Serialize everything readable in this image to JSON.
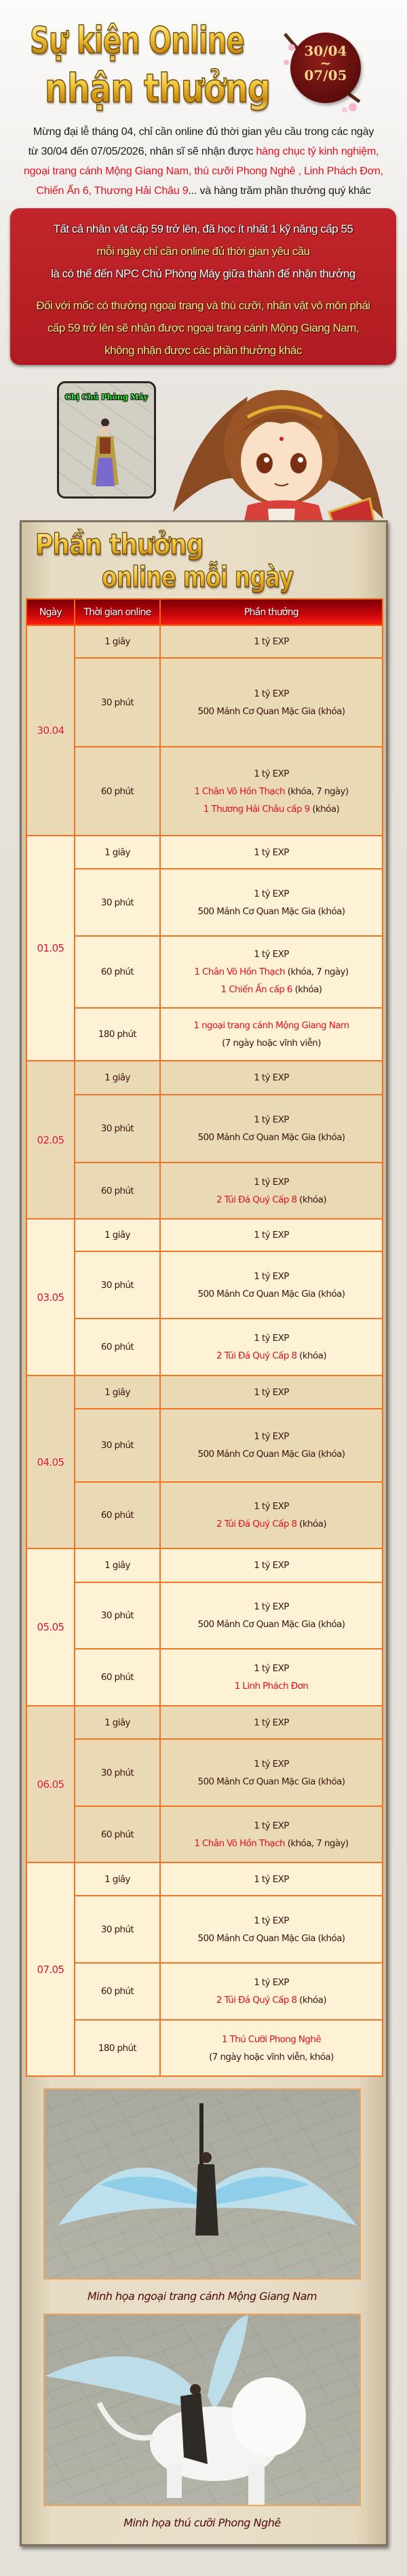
{
  "header": {
    "title_line1": "Sự kiện Online",
    "title_line2": "nhận thưởng",
    "seal_start": "30/04",
    "seal_sep": "~",
    "seal_end": "07/05"
  },
  "intro": {
    "lines": [
      [
        {
          "t": "Mừng đại lễ tháng 04, chỉ cần online đủ thời gian yêu cầu trong các ngày",
          "hl": false
        }
      ],
      [
        {
          "t": "từ 30/04 đến 07/05/2026, nhân sĩ sẽ nhận được ",
          "hl": false
        },
        {
          "t": "hàng chục tỷ kinh nghiệm,",
          "hl": true
        }
      ],
      [
        {
          "t": "ngoại trang cánh Mộng Giang Nam, thú cưỡi  Phong Nghê ,  Linh Phách Đơn,",
          "hl": true
        }
      ],
      [
        {
          "t": "Chiến Ấn 6, Thương Hải Châu 9",
          "hl": true
        },
        {
          "t": "... và hàng trăm phần thưởng quý khác",
          "hl": false
        }
      ]
    ]
  },
  "notice": {
    "lines": [
      {
        "t": "Tất cả nhân vật cấp 59 trở lên, đã học ít nhất 1 kỹ năng cấp 55",
        "color": "white"
      },
      {
        "t": "mỗi ngày chỉ cần online đủ thời gian yêu cầu",
        "color": "yellow"
      },
      {
        "t": "là có thể đến NPC Chủ Phòng Máy giữa thành để nhận thưởng",
        "color": "white"
      },
      {
        "t": "Đối với mốc có thưởng ngoại trang và thú cưỡi, nhân vật vô môn phái",
        "color": "yellow"
      },
      {
        "t": "cấp 59 trở lên sẽ nhận được ngoại trang cánh Mộng Giang Nam,",
        "color": "yellow"
      },
      {
        "t": "không nhận được các phần thưởng khác",
        "color": "yellow"
      }
    ]
  },
  "npc": {
    "name": "Chị Chủ Phòng Máy"
  },
  "rewards": {
    "title_line1": "Phần thưởng",
    "title_line2": "online mỗi ngày",
    "columns": [
      "Ngày",
      "Thời gian online",
      "Phần thưởng"
    ],
    "days": [
      {
        "date": "30.04",
        "rows": [
          {
            "time": "1 giây",
            "reward": [
              [
                {
                  "t": "1 tỷ EXP"
                }
              ]
            ]
          },
          {
            "time": "30 phút",
            "reward": [
              [
                {
                  "t": "1 tỷ EXP"
                }
              ],
              [
                {
                  "t": "500 Mảnh Cơ Quan Mặc Gia (khóa)"
                }
              ]
            ]
          },
          {
            "time": "60 phút",
            "reward": [
              [
                {
                  "t": "1 tỷ EXP"
                }
              ],
              [
                {
                  "t": "1 Chân Võ Hồn Thạch",
                  "hl": true
                },
                {
                  "t": " (khóa, 7 ngày)"
                }
              ],
              [
                {
                  "t": "1 Thương Hải Châu cấp 9",
                  "hl": true
                },
                {
                  "t": " (khóa)"
                }
              ]
            ]
          }
        ]
      },
      {
        "date": "01.05",
        "rows": [
          {
            "time": "1 giây",
            "reward": [
              [
                {
                  "t": "1 tỷ EXP"
                }
              ]
            ]
          },
          {
            "time": "30 phút",
            "reward": [
              [
                {
                  "t": "1 tỷ EXP"
                }
              ],
              [
                {
                  "t": "500 Mảnh Cơ Quan Mặc Gia (khóa)"
                }
              ]
            ]
          },
          {
            "time": "60 phút",
            "reward": [
              [
                {
                  "t": "1 tỷ EXP"
                }
              ],
              [
                {
                  "t": "1 Chân Võ Hồn Thạch",
                  "hl": true
                },
                {
                  "t": " (khóa, 7 ngày)"
                }
              ],
              [
                {
                  "t": "1 Chiến Ấn cấp 6",
                  "hl": true
                },
                {
                  "t": " (khóa)"
                }
              ]
            ]
          },
          {
            "time": "180 phút",
            "reward": [
              [
                {
                  "t": "1 ngoại trang cánh Mộng Giang Nam",
                  "hl": true
                }
              ],
              [
                {
                  "t": "(7 ngày hoặc vĩnh viễn)"
                }
              ]
            ]
          }
        ]
      },
      {
        "date": "02.05",
        "rows": [
          {
            "time": "1 giây",
            "reward": [
              [
                {
                  "t": "1 tỷ EXP"
                }
              ]
            ]
          },
          {
            "time": "30 phút",
            "reward": [
              [
                {
                  "t": "1 tỷ EXP"
                }
              ],
              [
                {
                  "t": "500 Mảnh Cơ Quan Mặc Gia (khóa)"
                }
              ]
            ]
          },
          {
            "time": "60 phút",
            "reward": [
              [
                {
                  "t": "1 tỷ EXP"
                }
              ],
              [
                {
                  "t": "2 Túi Đá Quý Cấp 8",
                  "hl": true
                },
                {
                  "t": " (khóa)"
                }
              ]
            ]
          }
        ]
      },
      {
        "date": "03.05",
        "rows": [
          {
            "time": "1 giây",
            "reward": [
              [
                {
                  "t": "1 tỷ EXP"
                }
              ]
            ]
          },
          {
            "time": "30 phút",
            "reward": [
              [
                {
                  "t": "1 tỷ EXP"
                }
              ],
              [
                {
                  "t": "500 Mảnh Cơ Quan Mặc Gia (khóa)"
                }
              ]
            ]
          },
          {
            "time": "60 phút",
            "reward": [
              [
                {
                  "t": "1 tỷ EXP"
                }
              ],
              [
                {
                  "t": "2 Túi Đá Quý Cấp 8",
                  "hl": true
                },
                {
                  "t": " (khóa)"
                }
              ]
            ]
          }
        ]
      },
      {
        "date": "04.05",
        "rows": [
          {
            "time": "1 giây",
            "reward": [
              [
                {
                  "t": "1 tỷ EXP"
                }
              ]
            ]
          },
          {
            "time": "30 phút",
            "reward": [
              [
                {
                  "t": "1 tỷ EXP"
                }
              ],
              [
                {
                  "t": "500 Mảnh Cơ Quan Mặc Gia (khóa)"
                }
              ]
            ]
          },
          {
            "time": "60 phút",
            "reward": [
              [
                {
                  "t": "1 tỷ EXP"
                }
              ],
              [
                {
                  "t": "2 Túi Đá Quý Cấp 8",
                  "hl": true
                },
                {
                  "t": " (khóa)"
                }
              ]
            ]
          }
        ]
      },
      {
        "date": "05.05",
        "rows": [
          {
            "time": "1 giây",
            "reward": [
              [
                {
                  "t": "1 tỷ EXP"
                }
              ]
            ]
          },
          {
            "time": "30 phút",
            "reward": [
              [
                {
                  "t": "1 tỷ EXP"
                }
              ],
              [
                {
                  "t": "500 Mảnh Cơ Quan Mặc Gia (khóa)"
                }
              ]
            ]
          },
          {
            "time": "60 phút",
            "reward": [
              [
                {
                  "t": "1 tỷ EXP"
                }
              ],
              [
                {
                  "t": "1 Linh Phách Đơn",
                  "hl": true
                }
              ]
            ]
          }
        ]
      },
      {
        "date": "06.05",
        "rows": [
          {
            "time": "1 giây",
            "reward": [
              [
                {
                  "t": "1 tỷ EXP"
                }
              ]
            ]
          },
          {
            "time": "30 phút",
            "reward": [
              [
                {
                  "t": "1 tỷ EXP"
                }
              ],
              [
                {
                  "t": "500 Mảnh Cơ Quan Mặc Gia (khóa)"
                }
              ]
            ]
          },
          {
            "time": "60 phút",
            "reward": [
              [
                {
                  "t": "1 tỷ EXP"
                }
              ],
              [
                {
                  "t": "1 Chân Võ Hồn Thạch",
                  "hl": true
                },
                {
                  "t": " (khóa, 7 ngày)"
                }
              ]
            ]
          }
        ]
      },
      {
        "date": "07.05",
        "rows": [
          {
            "time": "1 giây",
            "reward": [
              [
                {
                  "t": "1 tỷ EXP"
                }
              ]
            ]
          },
          {
            "time": "30 phút",
            "reward": [
              [
                {
                  "t": "1 tỷ EXP"
                }
              ],
              [
                {
                  "t": "500 Mảnh Cơ Quan Mặc Gia (khóa)"
                }
              ]
            ]
          },
          {
            "time": "60 phút",
            "reward": [
              [
                {
                  "t": "1 tỷ EXP"
                }
              ],
              [
                {
                  "t": "2 Túi Đá Quý Cấp 8",
                  "hl": true
                },
                {
                  "t": " (khóa)"
                }
              ]
            ]
          },
          {
            "time": "180 phút",
            "reward": [
              [
                {
                  "t": "1 Thú Cưỡi Phong Nghê",
                  "hl": true
                }
              ],
              [
                {
                  "t": "(7 ngày hoặc vĩnh viễn, khóa)"
                }
              ]
            ]
          }
        ]
      }
    ]
  },
  "gallery": [
    {
      "caption": "Minh họa ngoại trang cánh Mộng Giang Nam"
    },
    {
      "caption": "Minh họa thú cưỡi Phong Nghê"
    }
  ],
  "colors": {
    "highlight_red": "#e3101e",
    "notice_bg": "#b91f25",
    "notice_yellow": "#f7ea86",
    "table_border": "#f07424",
    "table_header": "#c8060c",
    "row_dark": "#ead9b5",
    "row_light": "#fdf1d6"
  }
}
